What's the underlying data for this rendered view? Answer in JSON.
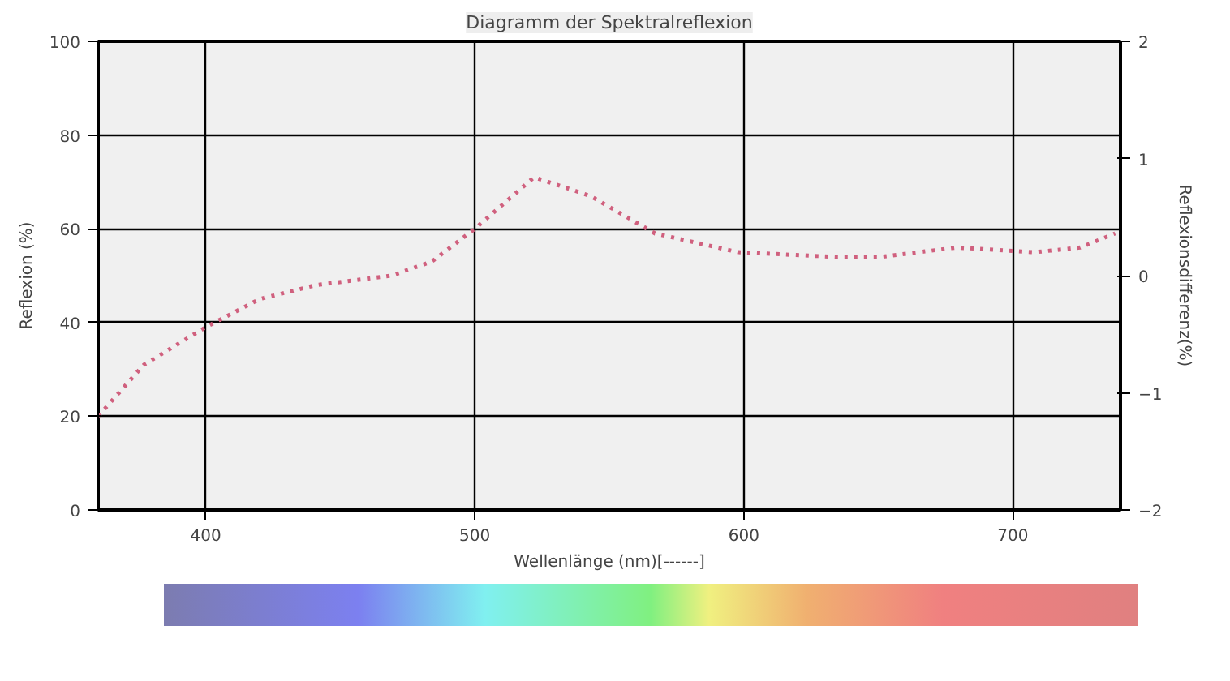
{
  "chart_data": {
    "type": "line",
    "title": "Diagramm der Spektralreflexion",
    "xlabel": "Wellenlänge (nm)[------]",
    "ylabel": "Reflexion (%)",
    "y2label": "Reflexionsdifferenz(%)",
    "xlim": [
      360,
      740
    ],
    "xticks": [
      400,
      500,
      600,
      700
    ],
    "ylim": [
      0,
      100
    ],
    "yticks": [
      0,
      20,
      40,
      60,
      80,
      100
    ],
    "y2lim": [
      -2,
      2
    ],
    "y2ticks": [
      -2,
      -1,
      0,
      1,
      2
    ],
    "grid": true,
    "line_style": "dotted",
    "marker": "none",
    "series": [
      {
        "color": "#d0607e",
        "x": [
          360,
          377,
          400,
          420,
          441,
          469,
          484,
          500,
          522,
          543,
          567,
          598,
          634,
          651,
          679,
          708,
          725,
          738
        ],
        "values": [
          20,
          31,
          39,
          45,
          48,
          50,
          53,
          60,
          71,
          67,
          59,
          55,
          54,
          54,
          56,
          55,
          56,
          59
        ]
      }
    ]
  }
}
